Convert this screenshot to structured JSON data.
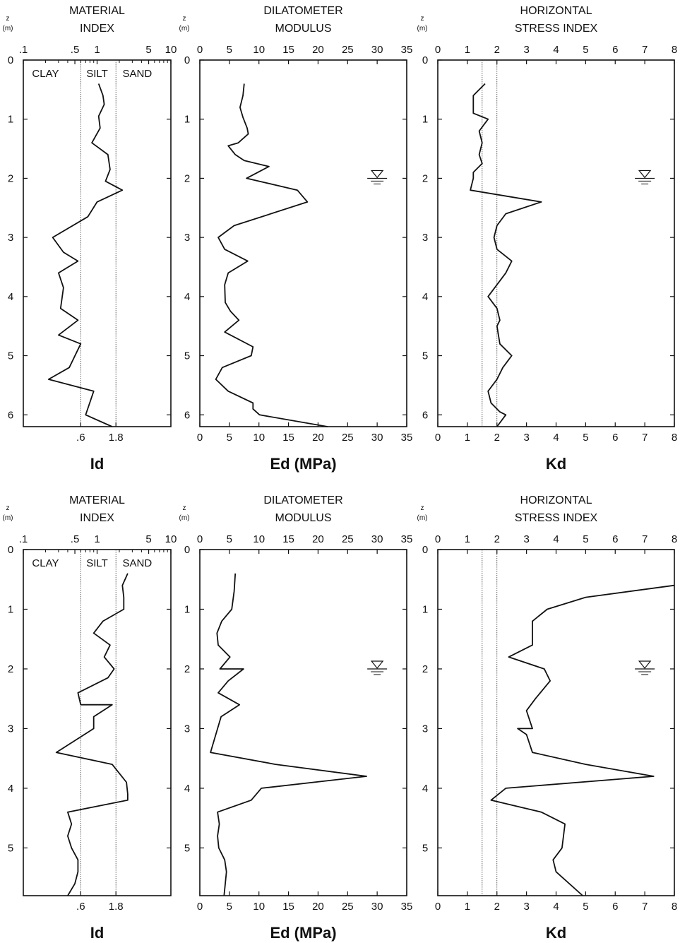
{
  "chart_data": [
    {
      "type": "line",
      "panel": "top-id",
      "title": [
        "MATERIAL",
        "INDEX"
      ],
      "ylabel": [
        "z",
        "(m)"
      ],
      "xlabel": "Id",
      "xscale": "log",
      "xlim": [
        0.1,
        10
      ],
      "ylim": [
        0,
        6.2
      ],
      "y_reversed": true,
      "top_ticks": [
        {
          "v": 0.1,
          "t": ".1"
        },
        {
          "v": 0.5,
          "t": ".5"
        },
        {
          "v": 1,
          "t": "1"
        },
        {
          "v": 5,
          "t": "5"
        },
        {
          "v": 10,
          "t": "10"
        }
      ],
      "bottom_ticks": [
        {
          "v": 0.6,
          "t": ".6"
        },
        {
          "v": 1.8,
          "t": "1.8"
        }
      ],
      "y_ticks": [
        0,
        1,
        2,
        3,
        4,
        5,
        6
      ],
      "ref_lines": [
        0.6,
        1.8
      ],
      "soil_labels": [
        {
          "text": "CLAY",
          "x": 0.2
        },
        {
          "text": "SILT",
          "x": 1.0
        },
        {
          "text": "SAND",
          "x": 3.5
        }
      ],
      "series": [
        {
          "x": [
            1.05,
            1.2,
            1.25,
            1.05,
            1.1,
            0.85,
            1.4,
            1.5,
            1.3,
            2.2,
            1.0,
            0.75,
            0.25,
            0.35,
            0.55,
            0.3,
            0.35,
            0.32,
            0.55,
            0.3,
            0.6,
            0.42,
            0.22,
            0.9,
            0.7,
            1.6
          ],
          "y": [
            0.4,
            0.6,
            0.75,
            0.95,
            1.15,
            1.4,
            1.6,
            1.85,
            2.05,
            2.2,
            2.4,
            2.65,
            3.0,
            3.25,
            3.4,
            3.6,
            3.85,
            4.2,
            4.4,
            4.65,
            4.8,
            5.2,
            5.4,
            5.6,
            6.0,
            6.2
          ]
        }
      ]
    },
    {
      "type": "line",
      "panel": "top-ed",
      "title": [
        "DILATOMETER",
        "MODULUS"
      ],
      "ylabel": [
        "z",
        "(m)"
      ],
      "xlabel": "Ed (MPa)",
      "xscale": "linear",
      "xlim": [
        0,
        35
      ],
      "ylim": [
        0,
        6.2
      ],
      "y_reversed": true,
      "top_ticks": [
        {
          "v": 0,
          "t": "0"
        },
        {
          "v": 5,
          "t": "5"
        },
        {
          "v": 10,
          "t": "10"
        },
        {
          "v": 15,
          "t": "15"
        },
        {
          "v": 20,
          "t": "20"
        },
        {
          "v": 25,
          "t": "25"
        },
        {
          "v": 30,
          "t": "30"
        },
        {
          "v": 35,
          "t": "35"
        }
      ],
      "bottom_ticks": [
        {
          "v": 0,
          "t": "0"
        },
        {
          "v": 5,
          "t": "5"
        },
        {
          "v": 10,
          "t": "10"
        },
        {
          "v": 15,
          "t": "15"
        },
        {
          "v": 20,
          "t": "20"
        },
        {
          "v": 25,
          "t": "25"
        },
        {
          "v": 30,
          "t": "30"
        },
        {
          "v": 35,
          "t": "35"
        }
      ],
      "y_ticks": [
        0,
        1,
        2,
        3,
        4,
        5,
        6
      ],
      "water_table": {
        "x": 30,
        "y": 2.0
      },
      "series": [
        {
          "x": [
            7.5,
            7.3,
            6.8,
            7.3,
            8.0,
            8.2,
            6.5,
            4.8,
            6.0,
            7.5,
            11.7,
            7.9,
            16.5,
            18.2,
            5.8,
            3.1,
            4.2,
            8.1,
            4.8,
            4.2,
            4.3,
            5.2,
            6.6,
            4.2,
            9.0,
            8.7,
            3.8,
            2.7,
            4.8,
            9.0,
            9.0,
            10.1,
            21.6
          ],
          "y": [
            0.4,
            0.6,
            0.8,
            0.97,
            1.15,
            1.25,
            1.4,
            1.45,
            1.6,
            1.7,
            1.8,
            2.0,
            2.2,
            2.4,
            2.8,
            3.0,
            3.2,
            3.4,
            3.6,
            3.8,
            4.1,
            4.25,
            4.4,
            4.6,
            4.85,
            5.0,
            5.2,
            5.4,
            5.6,
            5.8,
            5.9,
            6.0,
            6.2
          ]
        }
      ]
    },
    {
      "type": "line",
      "panel": "top-kd",
      "title": [
        "HORIZONTAL",
        "STRESS INDEX"
      ],
      "ylabel": [
        "z",
        "(m)"
      ],
      "xlabel": "Kd",
      "xscale": "linear",
      "xlim": [
        0,
        8
      ],
      "ylim": [
        0,
        6.2
      ],
      "y_reversed": true,
      "top_ticks": [
        {
          "v": 0,
          "t": "0"
        },
        {
          "v": 1,
          "t": "1"
        },
        {
          "v": 2,
          "t": "2"
        },
        {
          "v": 3,
          "t": "3"
        },
        {
          "v": 4,
          "t": "4"
        },
        {
          "v": 5,
          "t": "5"
        },
        {
          "v": 6,
          "t": "6"
        },
        {
          "v": 7,
          "t": "7"
        },
        {
          "v": 8,
          "t": "8"
        }
      ],
      "bottom_ticks": [
        {
          "v": 0,
          "t": "0"
        },
        {
          "v": 1,
          "t": "1"
        },
        {
          "v": 2,
          "t": "2"
        },
        {
          "v": 3,
          "t": "3"
        },
        {
          "v": 4,
          "t": "4"
        },
        {
          "v": 5,
          "t": "5"
        },
        {
          "v": 6,
          "t": "6"
        },
        {
          "v": 7,
          "t": "7"
        },
        {
          "v": 8,
          "t": "8"
        }
      ],
      "y_ticks": [
        0,
        1,
        2,
        3,
        4,
        5,
        6
      ],
      "ref_lines": [
        1.5,
        2.0
      ],
      "water_table": {
        "x": 7.0,
        "y": 2.0
      },
      "series": [
        {
          "x": [
            1.6,
            1.2,
            1.2,
            1.7,
            1.4,
            1.5,
            1.4,
            1.5,
            1.2,
            1.2,
            1.1,
            3.5,
            2.3,
            2.0,
            1.9,
            2.0,
            2.5,
            2.3,
            1.7,
            2.0,
            2.1,
            2.0,
            2.1,
            2.5,
            2.2,
            2.0,
            1.7,
            1.8,
            2.1,
            2.3,
            2.0
          ],
          "y": [
            0.4,
            0.6,
            0.9,
            1.0,
            1.2,
            1.4,
            1.6,
            1.75,
            1.9,
            2.0,
            2.2,
            2.4,
            2.6,
            2.8,
            3.0,
            3.2,
            3.4,
            3.6,
            4.0,
            4.2,
            4.4,
            4.5,
            4.8,
            5.0,
            5.2,
            5.4,
            5.6,
            5.8,
            5.95,
            6.0,
            6.2
          ]
        }
      ]
    },
    {
      "type": "line",
      "panel": "bottom-id",
      "title": [
        "MATERIAL",
        "INDEX"
      ],
      "ylabel": [
        "z",
        "(m)"
      ],
      "xlabel": "Id",
      "xscale": "log",
      "xlim": [
        0.1,
        10
      ],
      "ylim": [
        0,
        5.8
      ],
      "y_reversed": true,
      "top_ticks": [
        {
          "v": 0.1,
          "t": ".1"
        },
        {
          "v": 0.5,
          "t": ".5"
        },
        {
          "v": 1,
          "t": "1"
        },
        {
          "v": 5,
          "t": "5"
        },
        {
          "v": 10,
          "t": "10"
        }
      ],
      "bottom_ticks": [
        {
          "v": 0.6,
          "t": ".6"
        },
        {
          "v": 1.8,
          "t": "1.8"
        }
      ],
      "y_ticks": [
        0,
        1,
        2,
        3,
        4,
        5
      ],
      "ref_lines": [
        0.6,
        1.8
      ],
      "soil_labels": [
        {
          "text": "CLAY",
          "x": 0.2
        },
        {
          "text": "SILT",
          "x": 1.0
        },
        {
          "text": "SAND",
          "x": 3.5
        }
      ],
      "series": [
        {
          "x": [
            2.6,
            2.2,
            2.3,
            2.3,
            1.2,
            0.9,
            1.5,
            1.25,
            1.7,
            1.4,
            0.8,
            0.55,
            0.6,
            1.6,
            0.9,
            0.9,
            0.28,
            1.6,
            2.0,
            2.5,
            2.6,
            2.6,
            0.4,
            0.45,
            0.4,
            0.45,
            0.55,
            0.55,
            0.5,
            0.4
          ],
          "y": [
            0.4,
            0.6,
            0.8,
            1.0,
            1.2,
            1.4,
            1.6,
            1.8,
            2.0,
            2.15,
            2.3,
            2.4,
            2.6,
            2.6,
            2.8,
            3.0,
            3.4,
            3.6,
            3.75,
            3.9,
            4.1,
            4.2,
            4.4,
            4.6,
            4.8,
            5.0,
            5.2,
            5.4,
            5.6,
            5.8
          ]
        }
      ]
    },
    {
      "type": "line",
      "panel": "bottom-ed",
      "title": [
        "DILATOMETER",
        "MODULUS"
      ],
      "ylabel": [
        "z",
        "(m)"
      ],
      "xlabel": "Ed (MPa)",
      "xscale": "linear",
      "xlim": [
        0,
        35
      ],
      "ylim": [
        0,
        5.8
      ],
      "y_reversed": true,
      "top_ticks": [
        {
          "v": 0,
          "t": "0"
        },
        {
          "v": 5,
          "t": "5"
        },
        {
          "v": 10,
          "t": "10"
        },
        {
          "v": 15,
          "t": "15"
        },
        {
          "v": 20,
          "t": "20"
        },
        {
          "v": 25,
          "t": "25"
        },
        {
          "v": 30,
          "t": "30"
        },
        {
          "v": 35,
          "t": "35"
        }
      ],
      "bottom_ticks": [
        {
          "v": 0,
          "t": "0"
        },
        {
          "v": 5,
          "t": "5"
        },
        {
          "v": 10,
          "t": "10"
        },
        {
          "v": 15,
          "t": "15"
        },
        {
          "v": 20,
          "t": "20"
        },
        {
          "v": 25,
          "t": "25"
        },
        {
          "v": 30,
          "t": "30"
        },
        {
          "v": 35,
          "t": "35"
        }
      ],
      "y_ticks": [
        0,
        1,
        2,
        3,
        4,
        5
      ],
      "water_table": {
        "x": 30,
        "y": 2.0
      },
      "series": [
        {
          "x": [
            6.0,
            5.8,
            5.4,
            3.7,
            2.9,
            3.1,
            5.1,
            3.4,
            7.4,
            4.8,
            3.1,
            6.7,
            3.6,
            1.8,
            12.8,
            28.2,
            10.4,
            8.7,
            3.0,
            3.3,
            3.0,
            3.2,
            4.2,
            4.5,
            4.1
          ],
          "y": [
            0.4,
            0.7,
            1.0,
            1.2,
            1.4,
            1.6,
            1.8,
            2.0,
            2.0,
            2.2,
            2.4,
            2.6,
            2.8,
            3.4,
            3.6,
            3.8,
            4.0,
            4.2,
            4.4,
            4.6,
            4.8,
            5.0,
            5.2,
            5.4,
            5.8
          ]
        }
      ]
    },
    {
      "type": "line",
      "panel": "bottom-kd",
      "title": [
        "HORIZONTAL",
        "STRESS INDEX"
      ],
      "ylabel": [
        "z",
        "(m)"
      ],
      "xlabel": "Kd",
      "xscale": "linear",
      "xlim": [
        0,
        8
      ],
      "ylim": [
        0,
        5.8
      ],
      "y_reversed": true,
      "top_ticks": [
        {
          "v": 0,
          "t": "0"
        },
        {
          "v": 1,
          "t": "1"
        },
        {
          "v": 2,
          "t": "2"
        },
        {
          "v": 3,
          "t": "3"
        },
        {
          "v": 4,
          "t": "4"
        },
        {
          "v": 5,
          "t": "5"
        },
        {
          "v": 6,
          "t": "6"
        },
        {
          "v": 7,
          "t": "7"
        },
        {
          "v": 8,
          "t": "8"
        }
      ],
      "bottom_ticks": [
        {
          "v": 0,
          "t": "0"
        },
        {
          "v": 1,
          "t": "1"
        },
        {
          "v": 2,
          "t": "2"
        },
        {
          "v": 3,
          "t": "3"
        },
        {
          "v": 4,
          "t": "4"
        },
        {
          "v": 5,
          "t": "5"
        },
        {
          "v": 6,
          "t": "6"
        },
        {
          "v": 7,
          "t": "7"
        },
        {
          "v": 8,
          "t": "8"
        }
      ],
      "y_ticks": [
        0,
        1,
        2,
        3,
        4,
        5
      ],
      "ref_lines": [
        1.5,
        2.0
      ],
      "water_table": {
        "x": 7.0,
        "y": 2.0
      },
      "series": [
        {
          "x": [
            8.0,
            5.0,
            3.7,
            3.2,
            3.2,
            3.2,
            2.4,
            3.6,
            3.8,
            3.3,
            3.0,
            3.2,
            2.7,
            3.0,
            3.2,
            5.0,
            7.3,
            2.3,
            1.8,
            3.5,
            4.3,
            4.2,
            3.9,
            4.0,
            4.9
          ],
          "y": [
            0.6,
            0.8,
            1.0,
            1.2,
            1.4,
            1.6,
            1.8,
            2.0,
            2.2,
            2.5,
            2.7,
            3.0,
            3.0,
            3.1,
            3.4,
            3.6,
            3.8,
            4.0,
            4.2,
            4.4,
            4.6,
            5.0,
            5.2,
            5.4,
            5.8
          ]
        }
      ]
    }
  ]
}
